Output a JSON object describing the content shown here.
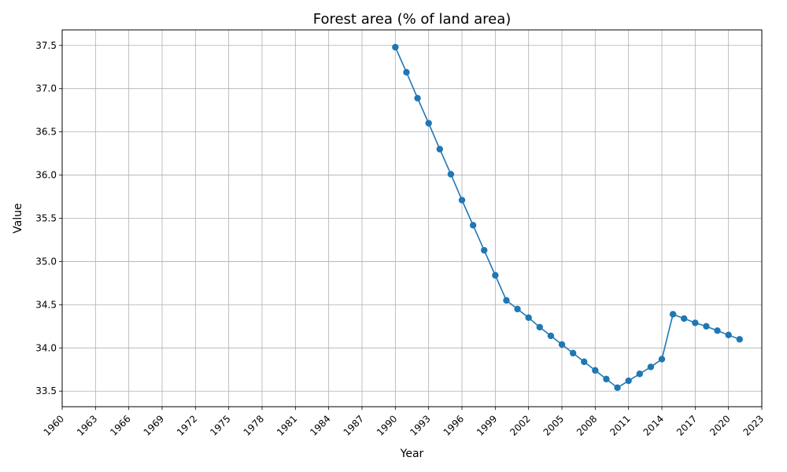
{
  "chart_data": {
    "type": "line",
    "title": "Forest area (% of land area)",
    "xlabel": "Year",
    "ylabel": "Value",
    "xlim": [
      1960,
      2023
    ],
    "ylim": [
      33.32,
      37.68
    ],
    "grid": true,
    "x_ticks": [
      1960,
      1963,
      1966,
      1969,
      1972,
      1975,
      1978,
      1981,
      1984,
      1987,
      1990,
      1993,
      1996,
      1999,
      2002,
      2005,
      2008,
      2011,
      2014,
      2017,
      2020,
      2023
    ],
    "y_ticks": [
      "33.5",
      "34.0",
      "34.5",
      "35.0",
      "35.5",
      "36.0",
      "36.5",
      "37.0",
      "37.5"
    ],
    "series": [
      {
        "color": "#1f77b4",
        "marker": "circle",
        "x": [
          1990,
          1991,
          1992,
          1993,
          1994,
          1995,
          1996,
          1997,
          1998,
          1999,
          2000,
          2001,
          2002,
          2003,
          2004,
          2005,
          2006,
          2007,
          2008,
          2009,
          2010,
          2011,
          2012,
          2013,
          2014,
          2015,
          2016,
          2017,
          2018,
          2019,
          2020,
          2021
        ],
        "y": [
          37.48,
          37.19,
          36.89,
          36.6,
          36.3,
          36.01,
          35.71,
          35.42,
          35.13,
          34.84,
          34.55,
          34.45,
          34.35,
          34.24,
          34.14,
          34.04,
          33.94,
          33.84,
          33.74,
          33.64,
          33.54,
          33.62,
          33.7,
          33.78,
          33.87,
          34.39,
          34.34,
          34.29,
          34.25,
          34.2,
          34.15,
          34.1
        ]
      }
    ]
  }
}
